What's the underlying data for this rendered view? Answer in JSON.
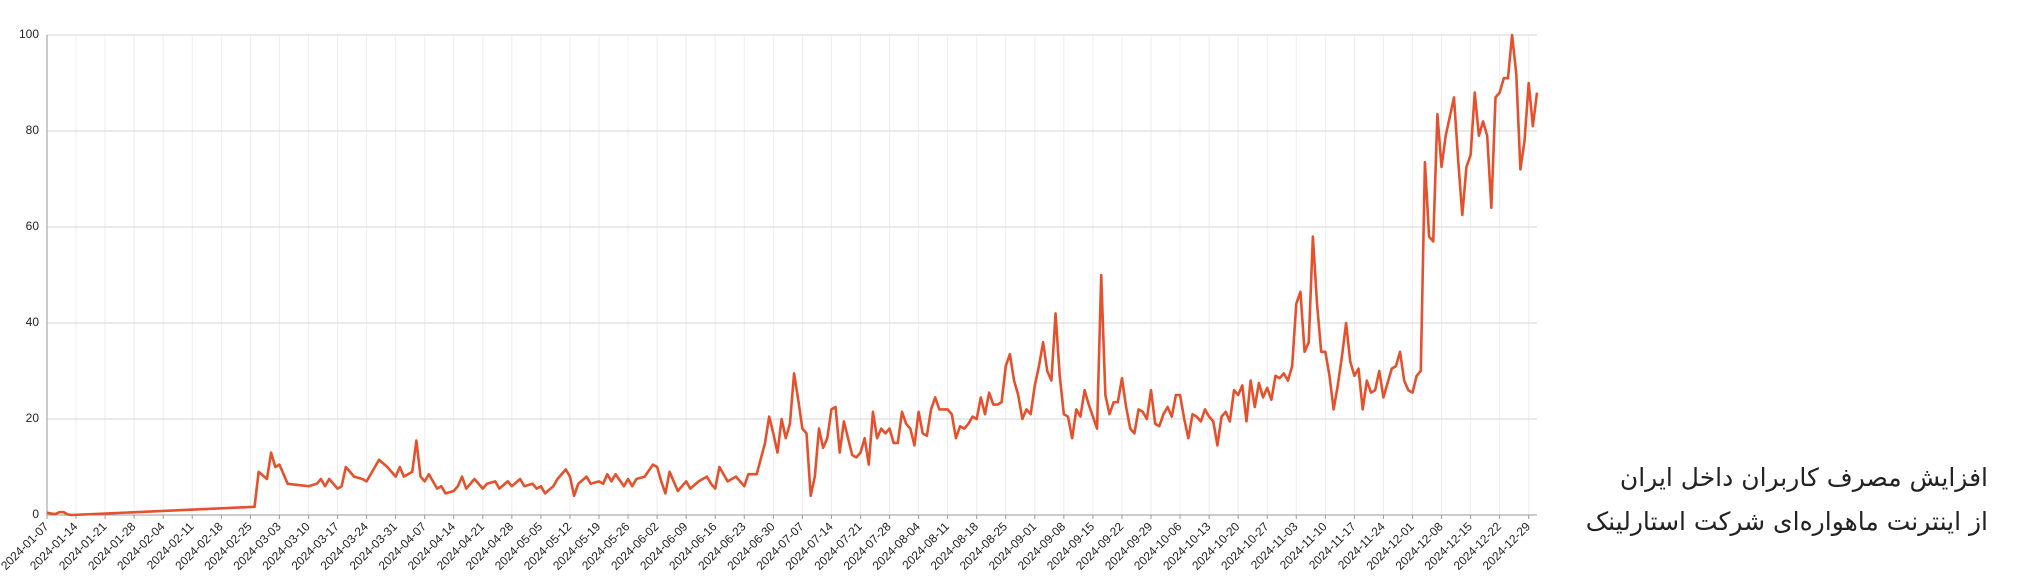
{
  "chart_data": {
    "type": "line",
    "color": "#e5512d",
    "grid": true,
    "xlim": [
      "2024-01-07",
      "2024-12-31"
    ],
    "ylim": [
      0,
      100
    ],
    "yticks": [
      0,
      20,
      40,
      60,
      80,
      100
    ],
    "xticks": [
      "2024-01-07",
      "2024-01-14",
      "2024-01-21",
      "2024-01-28",
      "2024-02-04",
      "2024-02-11",
      "2024-02-18",
      "2024-02-25",
      "2024-03-03",
      "2024-03-10",
      "2024-03-17",
      "2024-03-24",
      "2024-03-31",
      "2024-04-07",
      "2024-04-14",
      "2024-04-21",
      "2024-04-28",
      "2024-05-05",
      "2024-05-12",
      "2024-05-19",
      "2024-05-26",
      "2024-06-02",
      "2024-06-09",
      "2024-06-16",
      "2024-06-23",
      "2024-06-30",
      "2024-07-07",
      "2024-07-14",
      "2024-07-21",
      "2024-07-28",
      "2024-08-04",
      "2024-08-11",
      "2024-08-18",
      "2024-08-25",
      "2024-09-01",
      "2024-09-08",
      "2024-09-15",
      "2024-09-22",
      "2024-09-29",
      "2024-10-06",
      "2024-10-13",
      "2024-10-20",
      "2024-10-27",
      "2024-11-03",
      "2024-11-10",
      "2024-11-17",
      "2024-11-24",
      "2024-12-01",
      "2024-12-08",
      "2024-12-15",
      "2024-12-22",
      "2024-12-29"
    ],
    "x": [
      "2024-01-07",
      "2024-01-08",
      "2024-01-09",
      "2024-01-10",
      "2024-01-11",
      "2024-01-12",
      "2024-01-13",
      "2024-02-26",
      "2024-02-27",
      "2024-02-29",
      "2024-03-01",
      "2024-03-02",
      "2024-03-03",
      "2024-03-05",
      "2024-03-10",
      "2024-03-12",
      "2024-03-13",
      "2024-03-14",
      "2024-03-15",
      "2024-03-17",
      "2024-03-18",
      "2024-03-19",
      "2024-03-21",
      "2024-03-23",
      "2024-03-24",
      "2024-03-26",
      "2024-03-27",
      "2024-03-29",
      "2024-03-31",
      "2024-04-01",
      "2024-04-02",
      "2024-04-04",
      "2024-04-05",
      "2024-04-06",
      "2024-04-07",
      "2024-04-08",
      "2024-04-10",
      "2024-04-11",
      "2024-04-12",
      "2024-04-14",
      "2024-04-15",
      "2024-04-16",
      "2024-04-17",
      "2024-04-19",
      "2024-04-21",
      "2024-04-22",
      "2024-04-24",
      "2024-04-25",
      "2024-04-27",
      "2024-04-28",
      "2024-04-30",
      "2024-05-01",
      "2024-05-03",
      "2024-05-04",
      "2024-05-05",
      "2024-05-06",
      "2024-05-08",
      "2024-05-09",
      "2024-05-11",
      "2024-05-12",
      "2024-05-13",
      "2024-05-14",
      "2024-05-16",
      "2024-05-17",
      "2024-05-19",
      "2024-05-20",
      "2024-05-21",
      "2024-05-22",
      "2024-05-23",
      "2024-05-25",
      "2024-05-26",
      "2024-05-27",
      "2024-05-28",
      "2024-05-30",
      "2024-06-01",
      "2024-06-02",
      "2024-06-03",
      "2024-06-04",
      "2024-06-05",
      "2024-06-07",
      "2024-06-08",
      "2024-06-09",
      "2024-06-10",
      "2024-06-12",
      "2024-06-14",
      "2024-06-15",
      "2024-06-16",
      "2024-06-17",
      "2024-06-19",
      "2024-06-21",
      "2024-06-23",
      "2024-06-24",
      "2024-06-26",
      "2024-06-28",
      "2024-06-29",
      "2024-06-30",
      "2024-07-01",
      "2024-07-02",
      "2024-07-03",
      "2024-07-04",
      "2024-07-05",
      "2024-07-06",
      "2024-07-07",
      "2024-07-08",
      "2024-07-09",
      "2024-07-10",
      "2024-07-11",
      "2024-07-12",
      "2024-07-13",
      "2024-07-14",
      "2024-07-15",
      "2024-07-16",
      "2024-07-17",
      "2024-07-18",
      "2024-07-19",
      "2024-07-20",
      "2024-07-21",
      "2024-07-22",
      "2024-07-23",
      "2024-07-24",
      "2024-07-25",
      "2024-07-26",
      "2024-07-27",
      "2024-07-28",
      "2024-07-29",
      "2024-07-30",
      "2024-07-31",
      "2024-08-01",
      "2024-08-02",
      "2024-08-03",
      "2024-08-04",
      "2024-08-05",
      "2024-08-06",
      "2024-08-07",
      "2024-08-08",
      "2024-08-09",
      "2024-08-10",
      "2024-08-11",
      "2024-08-12",
      "2024-08-13",
      "2024-08-14",
      "2024-08-15",
      "2024-08-16",
      "2024-08-17",
      "2024-08-18",
      "2024-08-19",
      "2024-08-20",
      "2024-08-21",
      "2024-08-22",
      "2024-08-23",
      "2024-08-24",
      "2024-08-25",
      "2024-08-26",
      "2024-08-27",
      "2024-08-28",
      "2024-08-29",
      "2024-08-30",
      "2024-08-31",
      "2024-09-01",
      "2024-09-02",
      "2024-09-03",
      "2024-09-04",
      "2024-09-05",
      "2024-09-06",
      "2024-09-07",
      "2024-09-08",
      "2024-09-09",
      "2024-09-10",
      "2024-09-11",
      "2024-09-12",
      "2024-09-13",
      "2024-09-14",
      "2024-09-15",
      "2024-09-16",
      "2024-09-17",
      "2024-09-18",
      "2024-09-19",
      "2024-09-20",
      "2024-09-21",
      "2024-09-22",
      "2024-09-23",
      "2024-09-24",
      "2024-09-25",
      "2024-09-26",
      "2024-09-27",
      "2024-09-28",
      "2024-09-29",
      "2024-09-30",
      "2024-10-01",
      "2024-10-02",
      "2024-10-03",
      "2024-10-04",
      "2024-10-05",
      "2024-10-06",
      "2024-10-07",
      "2024-10-08",
      "2024-10-09",
      "2024-10-10",
      "2024-10-11",
      "2024-10-12",
      "2024-10-13",
      "2024-10-14",
      "2024-10-15",
      "2024-10-16",
      "2024-10-17",
      "2024-10-18",
      "2024-10-19",
      "2024-10-20",
      "2024-10-21",
      "2024-10-22",
      "2024-10-23",
      "2024-10-24",
      "2024-10-25",
      "2024-10-26",
      "2024-10-27",
      "2024-10-28",
      "2024-10-29",
      "2024-10-30",
      "2024-10-31",
      "2024-11-01",
      "2024-11-02",
      "2024-11-03",
      "2024-11-04",
      "2024-11-05",
      "2024-11-06",
      "2024-11-07",
      "2024-11-08",
      "2024-11-09",
      "2024-11-10",
      "2024-11-11",
      "2024-11-12",
      "2024-11-13",
      "2024-11-14",
      "2024-11-15",
      "2024-11-16",
      "2024-11-17",
      "2024-11-18",
      "2024-11-19",
      "2024-11-20",
      "2024-11-21",
      "2024-11-22",
      "2024-11-23",
      "2024-11-24",
      "2024-11-25",
      "2024-11-26",
      "2024-11-27",
      "2024-11-28",
      "2024-11-29",
      "2024-11-30",
      "2024-12-01",
      "2024-12-02",
      "2024-12-03",
      "2024-12-04",
      "2024-12-05",
      "2024-12-06",
      "2024-12-07",
      "2024-12-08",
      "2024-12-09",
      "2024-12-10",
      "2024-12-11",
      "2024-12-12",
      "2024-12-13",
      "2024-12-14",
      "2024-12-15",
      "2024-12-16",
      "2024-12-17",
      "2024-12-18",
      "2024-12-19",
      "2024-12-20",
      "2024-12-21",
      "2024-12-22",
      "2024-12-23",
      "2024-12-24",
      "2024-12-25",
      "2024-12-26",
      "2024-12-27",
      "2024-12-28",
      "2024-12-29",
      "2024-12-30",
      "2024-12-31"
    ],
    "values": [
      0.5,
      0.3,
      0.2,
      0.6,
      0.6,
      0.1,
      0,
      1.7,
      9,
      7.5,
      13,
      10,
      10.5,
      6.5,
      6,
      6.5,
      7.5,
      6,
      7.5,
      5.5,
      6,
      10,
      8,
      7.5,
      7,
      10,
      11.5,
      10,
      8,
      10,
      8,
      9,
      15.5,
      8,
      7,
      8.5,
      5.5,
      6,
      4.5,
      5,
      6,
      8,
      5.5,
      7.5,
      5.5,
      6.5,
      7,
      5.5,
      7,
      6,
      7.5,
      6,
      6.5,
      5.5,
      6,
      4.5,
      6,
      7.5,
      9.5,
      8,
      4,
      6.5,
      8,
      6.5,
      7,
      6.5,
      8.5,
      7,
      8.5,
      6,
      7.5,
      6,
      7.5,
      8,
      10.5,
      10,
      7,
      4.5,
      9,
      5,
      6,
      7,
      5.5,
      7,
      8,
      6.5,
      5.5,
      10,
      7,
      8,
      6,
      8.5,
      8.5,
      15,
      20.5,
      17,
      13,
      20,
      16,
      19,
      29.5,
      24,
      18,
      17,
      4,
      8,
      18,
      14,
      16,
      22,
      22.5,
      13,
      19.5,
      16,
      12.5,
      12,
      13,
      16,
      10.5,
      21.5,
      16,
      18,
      17,
      18,
      15,
      15,
      21.5,
      19,
      18,
      14.5,
      21.5,
      17,
      16.5,
      22,
      24.5,
      22,
      22,
      22,
      21,
      16,
      18.5,
      18,
      19,
      20.5,
      20,
      24.5,
      21,
      25.5,
      23,
      23,
      23.5,
      31,
      33.5,
      28,
      25,
      20,
      22,
      21,
      27,
      31,
      36,
      30,
      28,
      42,
      29,
      21,
      20.5,
      16,
      22,
      20.5,
      26,
      23,
      20.5,
      18,
      50,
      25,
      21,
      23.5,
      23.5,
      28.5,
      22.5,
      18,
      17,
      22,
      21.5,
      20,
      26,
      19,
      18.5,
      21,
      22.5,
      20.5,
      25,
      25,
      20,
      16,
      21,
      20.5,
      19.5,
      22,
      20.5,
      19.5,
      14.5,
      20.5,
      21.5,
      19.5,
      26,
      25,
      27,
      19.5,
      28,
      22.5,
      27.5,
      24.5,
      26.5,
      24,
      29,
      28.5,
      29.5,
      28,
      31,
      44,
      46.5,
      34,
      36,
      58,
      44,
      34,
      34,
      29,
      22,
      27,
      33,
      40,
      32,
      29,
      30.5,
      22,
      28,
      25.5,
      26,
      30,
      24.5,
      27.5,
      30.5,
      31,
      34,
      28,
      26,
      25.5,
      29,
      30,
      73.5,
      58,
      57,
      83.5,
      72.5,
      79,
      83,
      87,
      74,
      62.5,
      72.5,
      75,
      88,
      79,
      82,
      79,
      64,
      87,
      88,
      91,
      91,
      100,
      92,
      72,
      78,
      90,
      81,
      88
    ],
    "annotation_lines": [
      "افزایش مصرف کاربران داخل ایران",
      "از اینترنت ماهواره‌ای شرکت استارلینک"
    ]
  }
}
